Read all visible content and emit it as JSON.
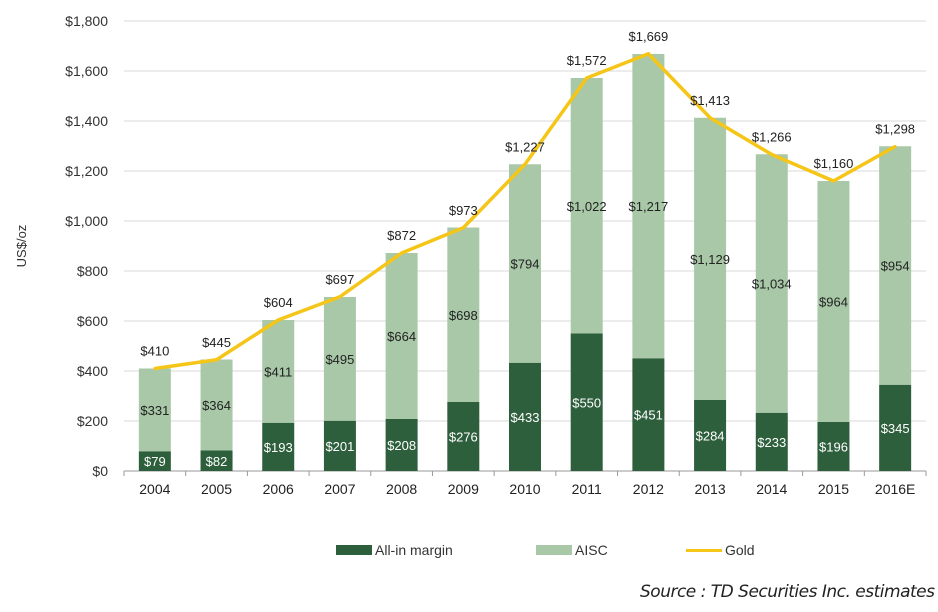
{
  "chart_data": {
    "type": "bar",
    "stacked": true,
    "ylabel": "US$/oz",
    "ylim": [
      0,
      1800
    ],
    "yticks": [
      "$0",
      "$200",
      "$400",
      "$600",
      "$800",
      "$1,000",
      "$1,200",
      "$1,400",
      "$1,600",
      "$1,800"
    ],
    "ytick_values": [
      0,
      200,
      400,
      600,
      800,
      1000,
      1200,
      1400,
      1600,
      1800
    ],
    "grid": true,
    "legend_position": "bottom",
    "categories": [
      "2004",
      "2005",
      "2006",
      "2007",
      "2008",
      "2009",
      "2010",
      "2011",
      "2012",
      "2013",
      "2014",
      "2015",
      "2016E"
    ],
    "series": [
      {
        "name": "All-in margin",
        "type": "bar",
        "color": "#2d5f3c",
        "values": [
          79,
          82,
          193,
          201,
          208,
          276,
          433,
          550,
          451,
          284,
          233,
          196,
          345
        ]
      },
      {
        "name": "AISC",
        "type": "bar",
        "color": "#a8c8a8",
        "values": [
          331,
          364,
          411,
          495,
          664,
          698,
          794,
          1022,
          1217,
          1129,
          1034,
          964,
          954
        ]
      },
      {
        "name": "Gold",
        "type": "line",
        "color": "#f5c518",
        "values": [
          410,
          445,
          604,
          697,
          872,
          973,
          1227,
          1572,
          1669,
          1413,
          1266,
          1160,
          1298
        ]
      }
    ],
    "source": "Source : TD Securities Inc. estimates"
  }
}
